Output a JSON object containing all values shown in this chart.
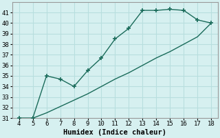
{
  "x": [
    4,
    5,
    6,
    7,
    8,
    9,
    10,
    11,
    12,
    13,
    14,
    15,
    16,
    17,
    18
  ],
  "y_upper": [
    31,
    31,
    35,
    34.7,
    34,
    35.5,
    36.7,
    38.5,
    39.5,
    41.2,
    41.2,
    41.3,
    41.2,
    40.3,
    40
  ],
  "x_lower": [
    4,
    5,
    6,
    7,
    8,
    9,
    10,
    11,
    12,
    13,
    14,
    15,
    16,
    17,
    18
  ],
  "y_lower": [
    31,
    31,
    31.5,
    32.1,
    32.7,
    33.3,
    34.0,
    34.7,
    35.3,
    36.0,
    36.7,
    37.3,
    38.0,
    38.7,
    40
  ],
  "line_color": "#1a6b5a",
  "bg_color": "#d6f0f0",
  "grid_color": "#b8dede",
  "xlabel": "Humidex (Indice chaleur)",
  "xlim": [
    3.5,
    18.5
  ],
  "ylim": [
    31,
    42
  ],
  "xticks": [
    4,
    5,
    6,
    7,
    8,
    9,
    10,
    11,
    12,
    13,
    14,
    15,
    16,
    17,
    18
  ],
  "yticks": [
    31,
    32,
    33,
    34,
    35,
    36,
    37,
    38,
    39,
    40,
    41
  ],
  "marker_size": 5,
  "line_width": 1.0,
  "font_size": 7.5
}
